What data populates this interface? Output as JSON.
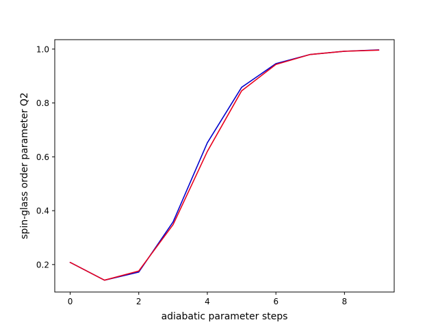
{
  "chart_data": {
    "type": "line",
    "title": "",
    "xlabel": "adiabatic parameter steps",
    "ylabel": "spin-glass order parameter Q2",
    "xlim": [
      -0.45,
      9.45
    ],
    "ylim": [
      0.098,
      1.035
    ],
    "xticks": [
      0,
      2,
      4,
      6,
      8
    ],
    "yticks": [
      0.2,
      0.4,
      0.6,
      0.8,
      1.0
    ],
    "xtick_labels": [
      "0",
      "2",
      "4",
      "6",
      "8"
    ],
    "ytick_labels": [
      "0.2",
      "0.4",
      "0.6",
      "0.8",
      "1.0"
    ],
    "grid": false,
    "legend": "none",
    "x": [
      0,
      1,
      2,
      3,
      4,
      5,
      6,
      7,
      8,
      9
    ],
    "series": [
      {
        "color": "#0000cc",
        "values": [
          0.208,
          0.142,
          0.172,
          0.358,
          0.652,
          0.858,
          0.946,
          0.98,
          0.992,
          0.997
        ]
      },
      {
        "color": "#e8001c",
        "values": [
          0.208,
          0.142,
          0.176,
          0.348,
          0.62,
          0.845,
          0.943,
          0.98,
          0.992,
          0.996
        ]
      }
    ]
  }
}
